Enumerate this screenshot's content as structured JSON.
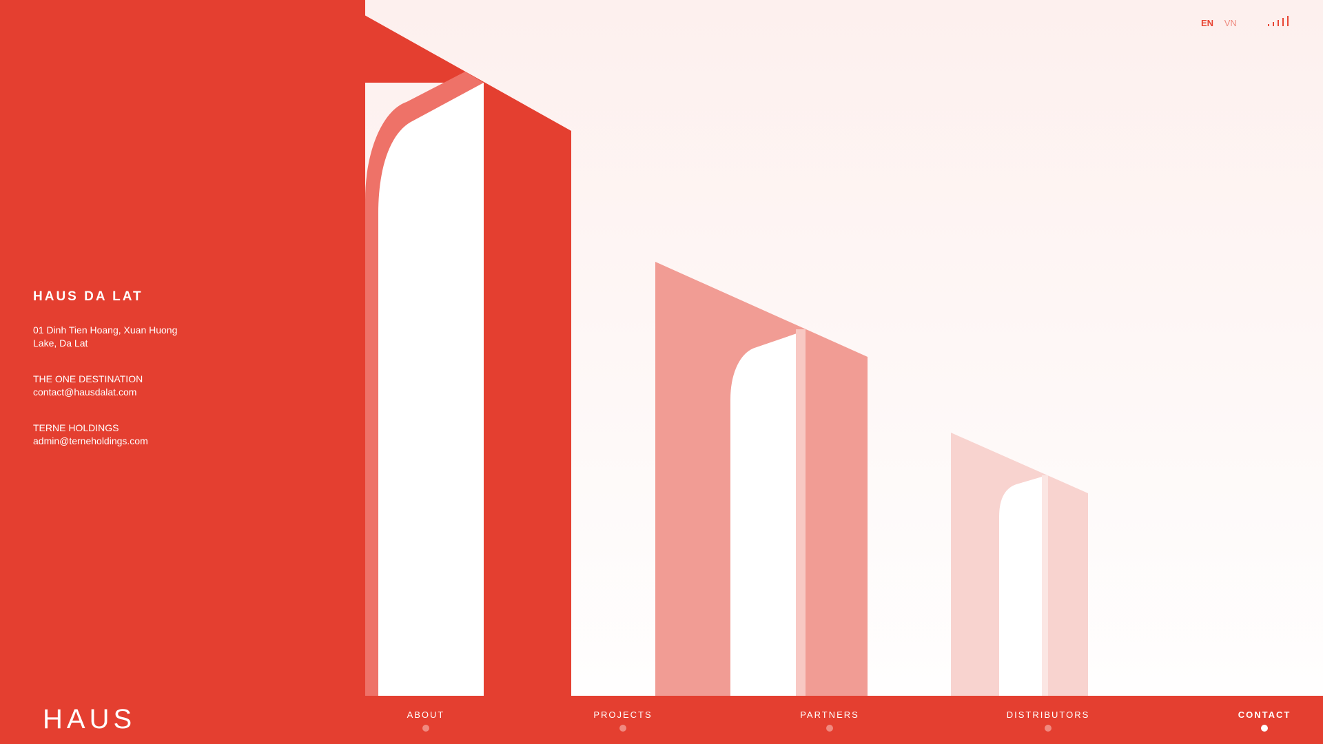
{
  "info": {
    "title": "HAUS DA LAT",
    "address_line1": "01 Dinh Tien Hoang, Xuan Huong",
    "address_line2": "Lake, Da Lat",
    "destination_label": "THE ONE DESTINATION",
    "destination_email": "contact@hausdalat.com",
    "holdings_label": "TERNE HOLDINGS",
    "holdings_email": "admin@terneholdings.com"
  },
  "language": {
    "active": "EN",
    "other": "VN"
  },
  "footer": {
    "logo": "HAUS",
    "nav": [
      {
        "label": "ABOUT",
        "active": false
      },
      {
        "label": "PROJECTS",
        "active": false
      },
      {
        "label": "PARTNERS",
        "active": false
      },
      {
        "label": "DISTRIBUTORS",
        "active": false
      },
      {
        "label": "CONTACT",
        "active": true
      }
    ]
  },
  "colors": {
    "primary_red": "#e43f30",
    "medium_red": "#f19c94",
    "light_red": "#f8d3cf",
    "background": "#fdf3f2"
  }
}
